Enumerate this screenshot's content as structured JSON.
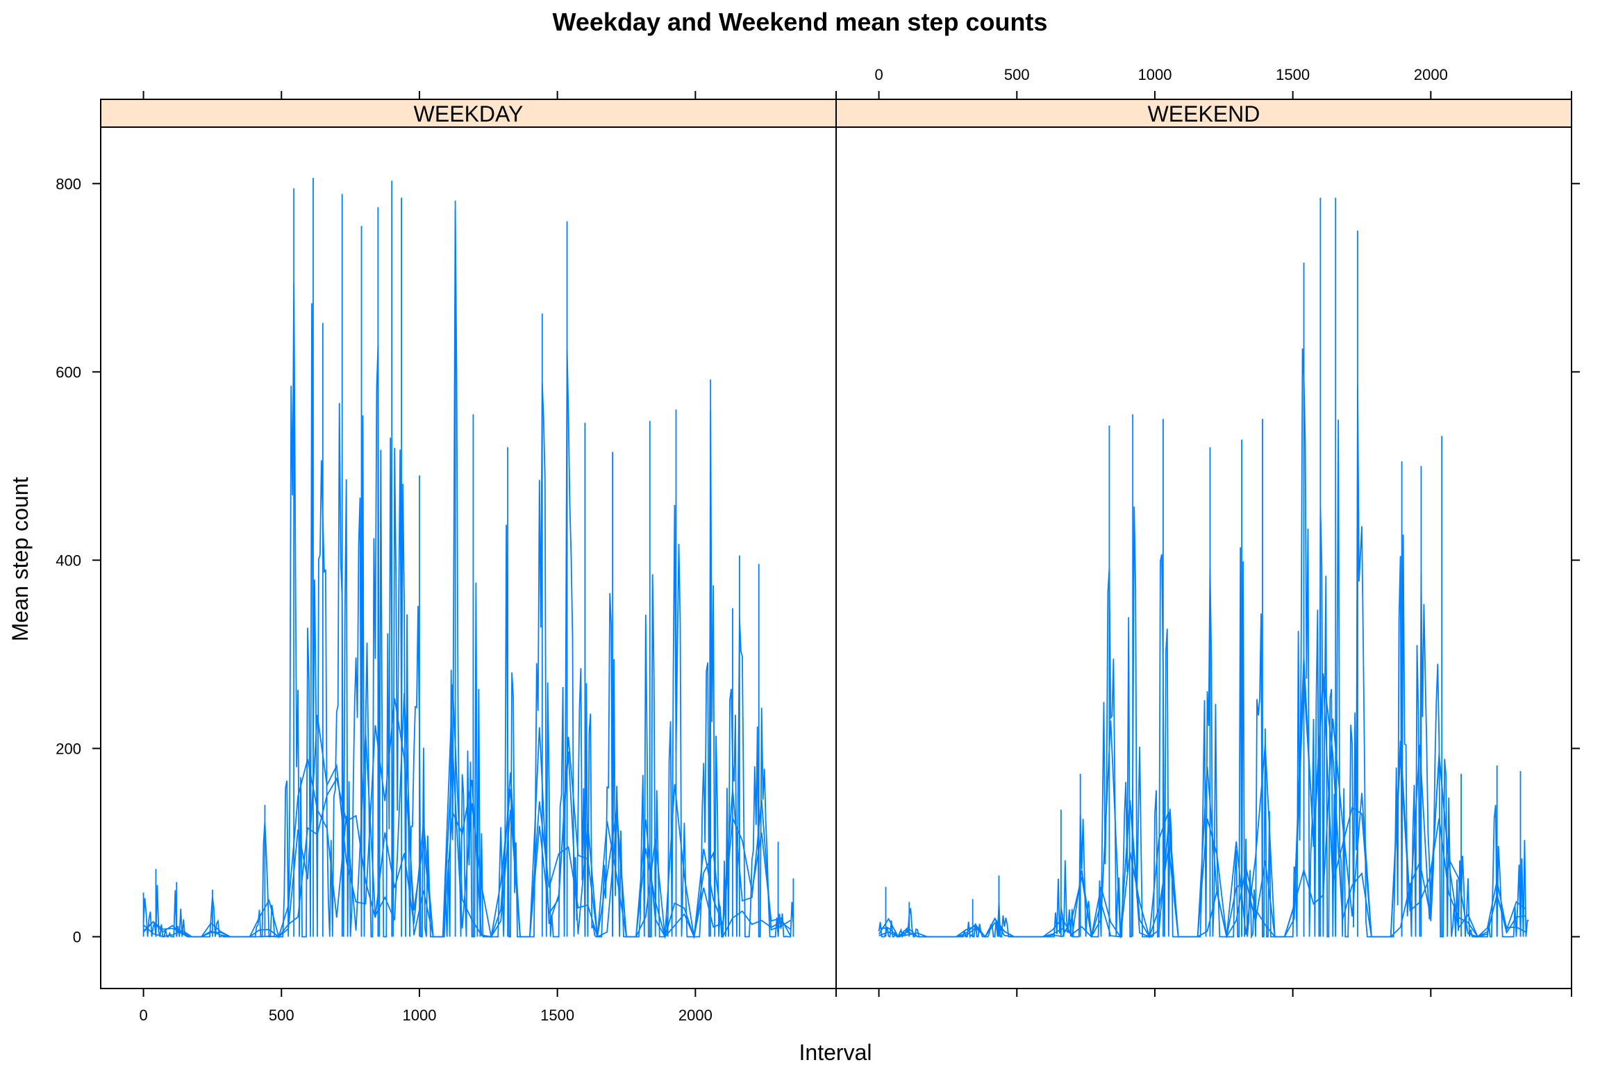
{
  "chart_data": {
    "type": "line",
    "title": "Weekday and Weekend mean step counts",
    "xlabel": "Interval",
    "ylabel": "Mean step count",
    "xlim": [
      -155,
      2510
    ],
    "ylim": [
      -55,
      860
    ],
    "x_ticks": [
      0,
      500,
      1000,
      1500,
      2000
    ],
    "x_tick_labels": [
      "0",
      "500",
      "1000",
      "1500",
      "2000"
    ],
    "y_ticks": [
      0,
      200,
      400,
      600,
      800
    ],
    "y_tick_labels": [
      "0",
      "200",
      "400",
      "600",
      "800"
    ],
    "grid": false,
    "line_color": "#0080ff",
    "strip_color": "#ffe5cc",
    "panels": [
      {
        "name": "WEEKDAY",
        "x_range": [
          0,
          2355
        ],
        "peaks": [
          {
            "x": 0,
            "y": 47
          },
          {
            "x": 45,
            "y": 72
          },
          {
            "x": 120,
            "y": 58
          },
          {
            "x": 250,
            "y": 50
          },
          {
            "x": 440,
            "y": 140
          },
          {
            "x": 545,
            "y": 795
          },
          {
            "x": 615,
            "y": 806
          },
          {
            "x": 650,
            "y": 652
          },
          {
            "x": 720,
            "y": 789
          },
          {
            "x": 790,
            "y": 755
          },
          {
            "x": 850,
            "y": 775
          },
          {
            "x": 900,
            "y": 803
          },
          {
            "x": 935,
            "y": 785
          },
          {
            "x": 1000,
            "y": 490
          },
          {
            "x": 1130,
            "y": 782
          },
          {
            "x": 1195,
            "y": 555
          },
          {
            "x": 1320,
            "y": 520
          },
          {
            "x": 1445,
            "y": 662
          },
          {
            "x": 1535,
            "y": 760
          },
          {
            "x": 1600,
            "y": 546
          },
          {
            "x": 1700,
            "y": 515
          },
          {
            "x": 1835,
            "y": 548
          },
          {
            "x": 1930,
            "y": 560
          },
          {
            "x": 2055,
            "y": 592
          },
          {
            "x": 2135,
            "y": 349
          },
          {
            "x": 2160,
            "y": 405
          },
          {
            "x": 2230,
            "y": 396
          },
          {
            "x": 2300,
            "y": 101
          },
          {
            "x": 2355,
            "y": 62
          }
        ]
      },
      {
        "name": "WEEKEND",
        "x_range": [
          0,
          2355
        ],
        "peaks": [
          {
            "x": 25,
            "y": 53
          },
          {
            "x": 110,
            "y": 37
          },
          {
            "x": 340,
            "y": 40
          },
          {
            "x": 435,
            "y": 65
          },
          {
            "x": 660,
            "y": 135
          },
          {
            "x": 730,
            "y": 173
          },
          {
            "x": 835,
            "y": 543
          },
          {
            "x": 920,
            "y": 555
          },
          {
            "x": 1030,
            "y": 550
          },
          {
            "x": 1200,
            "y": 520
          },
          {
            "x": 1315,
            "y": 528
          },
          {
            "x": 1390,
            "y": 550
          },
          {
            "x": 1540,
            "y": 716
          },
          {
            "x": 1600,
            "y": 785
          },
          {
            "x": 1655,
            "y": 785
          },
          {
            "x": 1735,
            "y": 750
          },
          {
            "x": 1895,
            "y": 505
          },
          {
            "x": 1965,
            "y": 500
          },
          {
            "x": 2040,
            "y": 532
          },
          {
            "x": 2110,
            "y": 173
          },
          {
            "x": 2240,
            "y": 182
          },
          {
            "x": 2325,
            "y": 176
          },
          {
            "x": 2355,
            "y": 0
          }
        ]
      }
    ]
  }
}
